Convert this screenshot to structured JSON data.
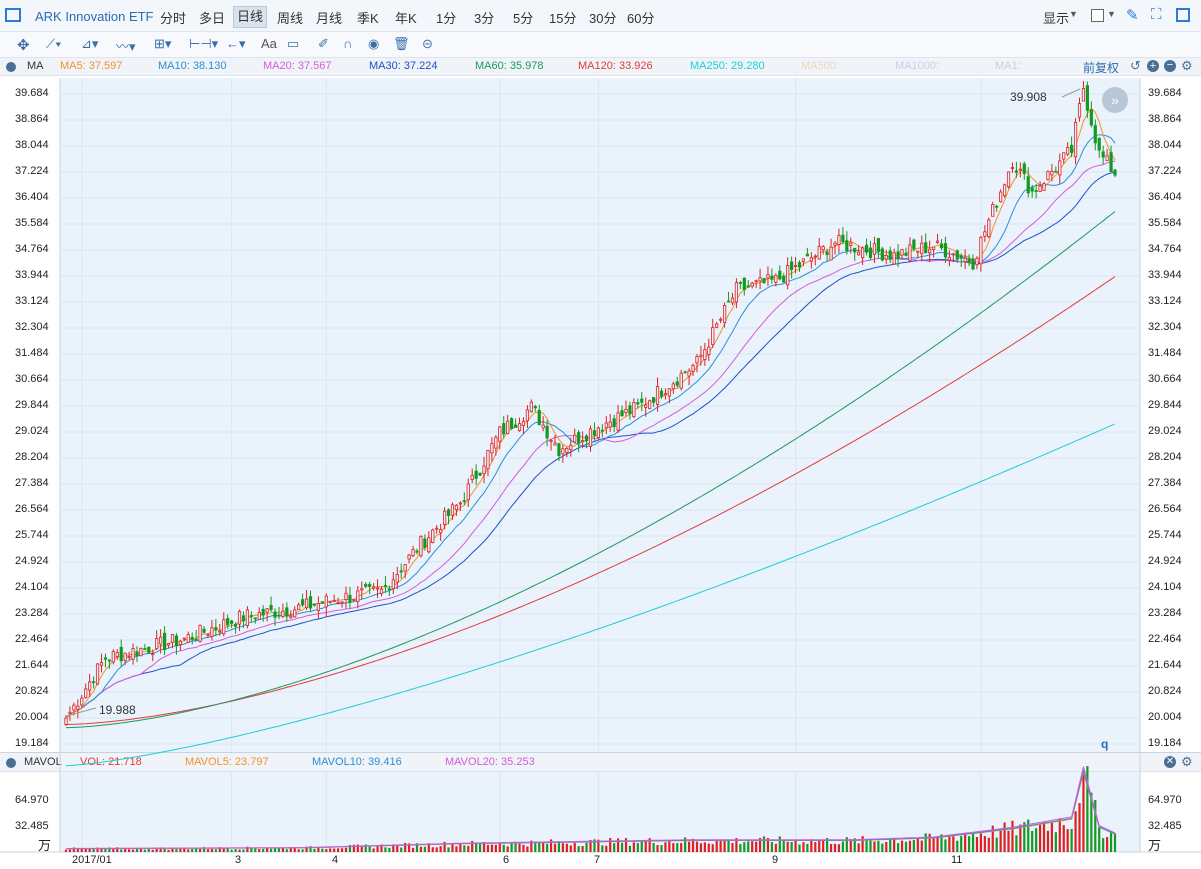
{
  "header": {
    "title": "ARK Innovation ETF",
    "tabs": [
      "分时",
      "多日",
      "日线",
      "周线",
      "月线",
      "季K",
      "年K",
      "1分",
      "3分",
      "5分",
      "15分",
      "30分",
      "60分"
    ],
    "active_tab": "日线",
    "display_label": "显示"
  },
  "toolbar": {
    "text_tool": "Aa"
  },
  "ma_bar": {
    "label": "MA",
    "items": [
      {
        "text": "MA5: 37.597",
        "color": "#f0932b"
      },
      {
        "text": "MA10: 38.130",
        "color": "#2b8fd6"
      },
      {
        "text": "MA20: 37.567",
        "color": "#d65bd6"
      },
      {
        "text": "MA30: 37.224",
        "color": "#1f50c8"
      },
      {
        "text": "MA60: 35.978",
        "color": "#1a9a5a"
      },
      {
        "text": "MA120: 33.926",
        "color": "#e23b3b"
      },
      {
        "text": "MA250: 29.280",
        "color": "#1ccfd4"
      },
      {
        "text": "MA500:",
        "color": "#e8d9b8"
      },
      {
        "text": "MA1000:",
        "color": "#c8cfe8"
      },
      {
        "text": "MA1:",
        "color": "#c8d0dc"
      }
    ],
    "right_label": "前复权"
  },
  "vol_bar": {
    "label": "MAVOL",
    "items": [
      {
        "text": "VOL: 21.718",
        "color": "#e23b3b"
      },
      {
        "text": "MAVOL5: 23.797",
        "color": "#f0932b"
      },
      {
        "text": "MAVOL10: 39.416",
        "color": "#2b8fd6"
      },
      {
        "text": "MAVOL20: 35.253",
        "color": "#d65bd6"
      }
    ]
  },
  "chart_data": {
    "type": "candlestick",
    "y_ticks": [
      "39.684",
      "38.864",
      "38.044",
      "37.224",
      "36.404",
      "35.584",
      "34.764",
      "33.944",
      "33.124",
      "32.304",
      "31.484",
      "30.664",
      "29.844",
      "29.024",
      "28.204",
      "27.384",
      "26.564",
      "25.744",
      "24.924",
      "24.104",
      "23.284",
      "22.464",
      "21.644",
      "20.824",
      "20.004",
      "19.184"
    ],
    "ylim": [
      19.184,
      39.684
    ],
    "x_labels": [
      "2017/01",
      "3",
      "4",
      "6",
      "7",
      "9",
      "11"
    ],
    "max_annotation": "39.908",
    "min_annotation": "19.988",
    "q_label": "q",
    "anchors": [
      [
        0,
        20.0
      ],
      [
        10,
        21.9
      ],
      [
        30,
        22.5
      ],
      [
        45,
        23.2
      ],
      [
        60,
        23.5
      ],
      [
        70,
        23.8
      ],
      [
        80,
        24.0
      ],
      [
        90,
        25.5
      ],
      [
        100,
        26.8
      ],
      [
        110,
        29.0
      ],
      [
        118,
        29.8
      ],
      [
        125,
        28.5
      ],
      [
        135,
        29.2
      ],
      [
        145,
        29.8
      ],
      [
        160,
        31.2
      ],
      [
        170,
        33.5
      ],
      [
        180,
        33.8
      ],
      [
        195,
        35.0
      ],
      [
        210,
        34.6
      ],
      [
        220,
        34.9
      ],
      [
        230,
        34.4
      ],
      [
        240,
        37.6
      ],
      [
        245,
        36.6
      ],
      [
        255,
        37.9
      ],
      [
        258,
        39.9
      ],
      [
        262,
        37.8
      ],
      [
        266,
        37.2
      ]
    ],
    "ma_end_values": {
      "MA5": 37.597,
      "MA10": 38.13,
      "MA20": 37.567,
      "MA30": 37.224,
      "MA60": 35.978,
      "MA120": 33.926,
      "MA250": 29.28
    },
    "volume": {
      "y_ticks": [
        "64.970",
        "32.485"
      ],
      "unit": "万",
      "max": 97.4,
      "anchors": [
        [
          0,
          4
        ],
        [
          60,
          5
        ],
        [
          100,
          10
        ],
        [
          130,
          12
        ],
        [
          160,
          14
        ],
        [
          200,
          14
        ],
        [
          220,
          17
        ],
        [
          240,
          28
        ],
        [
          255,
          40
        ],
        [
          258,
          97
        ],
        [
          262,
          30
        ],
        [
          266,
          21.7
        ]
      ]
    }
  }
}
